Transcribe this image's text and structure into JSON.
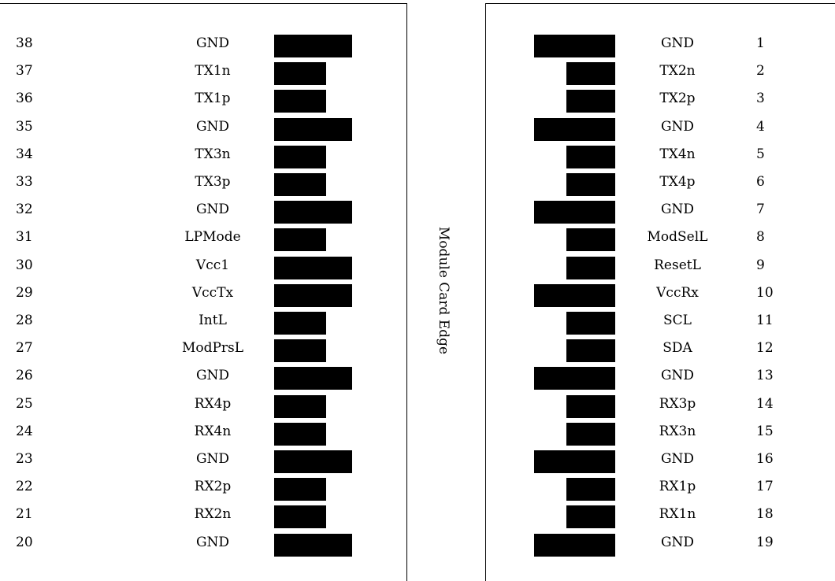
{
  "diagram": {
    "center_label": "Module Card Edge",
    "left_side": [
      {
        "pin": "38",
        "signal": "GND",
        "pad": "long"
      },
      {
        "pin": "37",
        "signal": "TX1n",
        "pad": "short"
      },
      {
        "pin": "36",
        "signal": "TX1p",
        "pad": "short"
      },
      {
        "pin": "35",
        "signal": "GND",
        "pad": "long"
      },
      {
        "pin": "34",
        "signal": "TX3n",
        "pad": "short"
      },
      {
        "pin": "33",
        "signal": "TX3p",
        "pad": "short"
      },
      {
        "pin": "32",
        "signal": "GND",
        "pad": "long"
      },
      {
        "pin": "31",
        "signal": "LPMode",
        "pad": "short"
      },
      {
        "pin": "30",
        "signal": "Vcc1",
        "pad": "long"
      },
      {
        "pin": "29",
        "signal": "VccTx",
        "pad": "long"
      },
      {
        "pin": "28",
        "signal": "IntL",
        "pad": "short"
      },
      {
        "pin": "27",
        "signal": "ModPrsL",
        "pad": "short"
      },
      {
        "pin": "26",
        "signal": "GND",
        "pad": "long"
      },
      {
        "pin": "25",
        "signal": "RX4p",
        "pad": "short"
      },
      {
        "pin": "24",
        "signal": "RX4n",
        "pad": "short"
      },
      {
        "pin": "23",
        "signal": "GND",
        "pad": "long"
      },
      {
        "pin": "22",
        "signal": "RX2p",
        "pad": "short"
      },
      {
        "pin": "21",
        "signal": "RX2n",
        "pad": "short"
      },
      {
        "pin": "20",
        "signal": "GND",
        "pad": "long"
      }
    ],
    "right_side": [
      {
        "pin": "1",
        "signal": "GND",
        "pad": "long"
      },
      {
        "pin": "2",
        "signal": "TX2n",
        "pad": "short"
      },
      {
        "pin": "3",
        "signal": "TX2p",
        "pad": "short"
      },
      {
        "pin": "4",
        "signal": "GND",
        "pad": "long"
      },
      {
        "pin": "5",
        "signal": "TX4n",
        "pad": "short"
      },
      {
        "pin": "6",
        "signal": "TX4p",
        "pad": "short"
      },
      {
        "pin": "7",
        "signal": "GND",
        "pad": "long"
      },
      {
        "pin": "8",
        "signal": "ModSelL",
        "pad": "short"
      },
      {
        "pin": "9",
        "signal": "ResetL",
        "pad": "short"
      },
      {
        "pin": "10",
        "signal": "VccRx",
        "pad": "long"
      },
      {
        "pin": "11",
        "signal": "SCL",
        "pad": "short"
      },
      {
        "pin": "12",
        "signal": "SDA",
        "pad": "short"
      },
      {
        "pin": "13",
        "signal": "GND",
        "pad": "long"
      },
      {
        "pin": "14",
        "signal": "RX3p",
        "pad": "short"
      },
      {
        "pin": "15",
        "signal": "RX3n",
        "pad": "short"
      },
      {
        "pin": "16",
        "signal": "GND",
        "pad": "long"
      },
      {
        "pin": "17",
        "signal": "RX1p",
        "pad": "short"
      },
      {
        "pin": "18",
        "signal": "RX1n",
        "pad": "short"
      },
      {
        "pin": "19",
        "signal": "GND",
        "pad": "long"
      }
    ],
    "colors": {
      "pad": "#000000",
      "line": "#000000",
      "background": "#ffffff"
    }
  }
}
